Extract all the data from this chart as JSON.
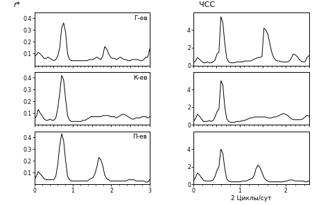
{
  "ylabel_left": "r*",
  "title_right": "ЧСС",
  "xlabel_right": "2 Циклы/сут",
  "labels": [
    "Г-ев",
    "К-ев",
    "П-ев"
  ],
  "xlim_left": [
    0,
    3
  ],
  "xlim_right": [
    0,
    2.5
  ],
  "ylim_temp": [
    0,
    0.45
  ],
  "ylim_hr": [
    0,
    6
  ],
  "temp_G": [
    0.07,
    0.09,
    0.11,
    0.1,
    0.08,
    0.06,
    0.06,
    0.07,
    0.06,
    0.05,
    0.04,
    0.05,
    0.08,
    0.15,
    0.32,
    0.36,
    0.28,
    0.1,
    0.05,
    0.04,
    0.04,
    0.04,
    0.04,
    0.04,
    0.04,
    0.04,
    0.04,
    0.04,
    0.05,
    0.05,
    0.05,
    0.06,
    0.07,
    0.06,
    0.05,
    0.08,
    0.16,
    0.14,
    0.1,
    0.07,
    0.06,
    0.06,
    0.05,
    0.06,
    0.07,
    0.06,
    0.05,
    0.05,
    0.04,
    0.04,
    0.05,
    0.05,
    0.05,
    0.05,
    0.04,
    0.04,
    0.05,
    0.07,
    0.07,
    0.14
  ],
  "temp_K": [
    0.05,
    0.07,
    0.13,
    0.1,
    0.08,
    0.05,
    0.04,
    0.04,
    0.05,
    0.04,
    0.04,
    0.06,
    0.14,
    0.27,
    0.42,
    0.38,
    0.22,
    0.08,
    0.04,
    0.03,
    0.03,
    0.03,
    0.03,
    0.03,
    0.03,
    0.04,
    0.04,
    0.05,
    0.06,
    0.07,
    0.07,
    0.07,
    0.07,
    0.07,
    0.07,
    0.08,
    0.08,
    0.08,
    0.08,
    0.07,
    0.07,
    0.07,
    0.06,
    0.07,
    0.08,
    0.09,
    0.09,
    0.08,
    0.07,
    0.06,
    0.05,
    0.05,
    0.06,
    0.06,
    0.06,
    0.07,
    0.07,
    0.07,
    0.06,
    0.07
  ],
  "temp_P": [
    0.04,
    0.07,
    0.11,
    0.09,
    0.07,
    0.05,
    0.04,
    0.04,
    0.04,
    0.04,
    0.04,
    0.07,
    0.17,
    0.33,
    0.43,
    0.37,
    0.2,
    0.07,
    0.04,
    0.03,
    0.03,
    0.03,
    0.03,
    0.03,
    0.03,
    0.03,
    0.03,
    0.03,
    0.04,
    0.05,
    0.06,
    0.09,
    0.15,
    0.23,
    0.21,
    0.16,
    0.08,
    0.05,
    0.04,
    0.03,
    0.03,
    0.03,
    0.03,
    0.03,
    0.03,
    0.03,
    0.03,
    0.03,
    0.04,
    0.04,
    0.04,
    0.04,
    0.03,
    0.03,
    0.03,
    0.03,
    0.03,
    0.02,
    0.02,
    0.04
  ],
  "hr_G": [
    0.3,
    0.5,
    0.9,
    0.7,
    0.5,
    0.3,
    0.3,
    0.4,
    0.3,
    0.3,
    0.4,
    0.6,
    1.3,
    1.5,
    5.5,
    4.8,
    2.5,
    0.8,
    0.4,
    0.3,
    0.3,
    0.3,
    0.4,
    0.4,
    0.4,
    0.4,
    0.5,
    0.5,
    0.5,
    0.5,
    0.6,
    0.7,
    0.8,
    0.9,
    0.9,
    1.0,
    4.2,
    4.0,
    3.5,
    2.5,
    1.5,
    0.9,
    0.6,
    0.5,
    0.5,
    0.4,
    0.4,
    0.4,
    0.4,
    0.5,
    0.8,
    1.3,
    1.2,
    1.0,
    0.7,
    0.5,
    0.4,
    0.4,
    0.9,
    1.1
  ],
  "hr_K": [
    0.4,
    0.7,
    1.2,
    1.0,
    0.7,
    0.4,
    0.4,
    0.4,
    0.5,
    0.4,
    0.5,
    0.9,
    1.5,
    1.8,
    5.0,
    4.5,
    2.0,
    0.7,
    0.4,
    0.3,
    0.3,
    0.3,
    0.4,
    0.4,
    0.4,
    0.5,
    0.5,
    0.6,
    0.7,
    0.8,
    0.8,
    0.9,
    0.9,
    0.9,
    0.9,
    0.9,
    0.9,
    0.9,
    0.8,
    0.8,
    0.8,
    0.9,
    0.9,
    1.0,
    1.1,
    1.2,
    1.3,
    1.2,
    1.1,
    0.9,
    0.7,
    0.6,
    0.6,
    0.6,
    0.6,
    0.6,
    0.7,
    0.9,
    1.1,
    1.0
  ],
  "hr_P": [
    0.4,
    0.8,
    1.3,
    1.1,
    0.8,
    0.5,
    0.4,
    0.4,
    0.4,
    0.4,
    0.5,
    0.9,
    1.6,
    2.0,
    4.0,
    3.5,
    1.8,
    0.6,
    0.4,
    0.3,
    0.3,
    0.3,
    0.3,
    0.3,
    0.3,
    0.4,
    0.4,
    0.4,
    0.5,
    0.6,
    0.7,
    1.0,
    1.8,
    2.2,
    1.9,
    1.4,
    0.8,
    0.5,
    0.4,
    0.3,
    0.3,
    0.3,
    0.3,
    0.3,
    0.3,
    0.3,
    0.3,
    0.4,
    0.4,
    0.5,
    0.5,
    0.5,
    0.4,
    0.4,
    0.4,
    0.4,
    0.4,
    0.3,
    0.3,
    0.4
  ]
}
